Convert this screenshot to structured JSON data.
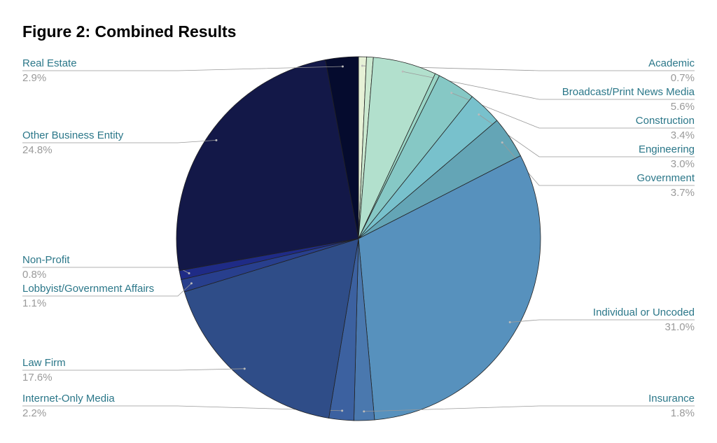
{
  "chart_data": {
    "type": "pie",
    "title": "Figure 2: Combined Results",
    "categories": [
      "Academic",
      null,
      "Broadcast/Print News Media",
      null,
      "Construction",
      "Engineering",
      "Government",
      "Individual or Uncoded",
      "Insurance",
      "Internet-Only Media",
      "Law Firm",
      "Lobbyist/Government Affairs",
      "Non-Profit",
      "Other Business Entity",
      "Real Estate"
    ],
    "values": [
      0.7,
      0.6,
      5.6,
      0.4,
      3.4,
      3.0,
      3.7,
      31.0,
      1.8,
      2.2,
      17.6,
      1.1,
      0.8,
      24.8,
      2.9
    ],
    "value_labels": [
      "0.7%",
      null,
      "5.6%",
      null,
      "3.4%",
      "3.0%",
      "3.7%",
      "31.0%",
      "1.8%",
      "2.2%",
      "17.6%",
      "1.1%",
      "0.8%",
      "24.8%",
      "2.9%"
    ],
    "colors": [
      "#e6f1d6",
      "#cbe9d0",
      "#b2e0cd",
      "#9ad6c6",
      "#86c8c5",
      "#78c1cc",
      "#64a5b6",
      "#5791bd",
      "#4a78ae",
      "#3c61a0",
      "#2f4d88",
      "#283f8d",
      "#1f2b86",
      "#131848",
      "#050b2e"
    ]
  }
}
